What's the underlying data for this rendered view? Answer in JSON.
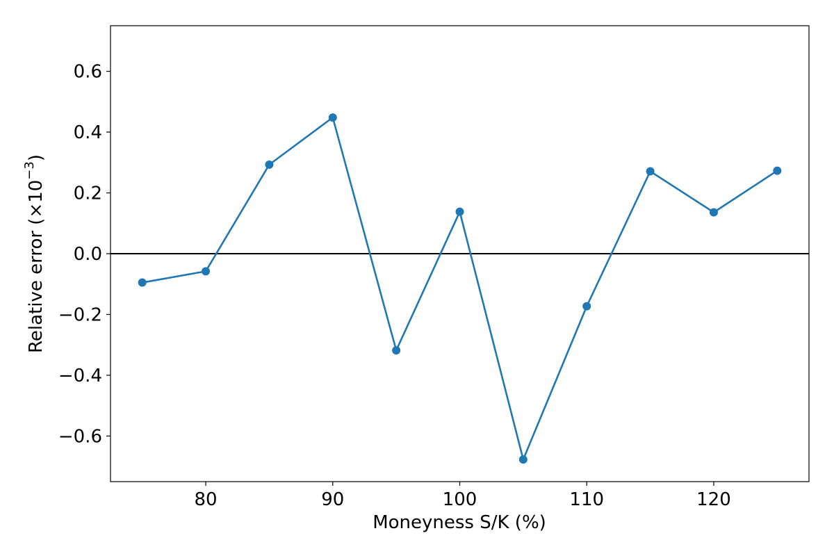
{
  "chart_data": {
    "type": "line",
    "xlabel": "Moneyness S/K (%)",
    "ylabel": "Relative error (×10",
    "ylabel_exponent": "−3",
    "ylabel_close": ")",
    "xlim": [
      72.5,
      127.5
    ],
    "ylim": [
      -0.75,
      0.75
    ],
    "xticks": [
      80,
      90,
      100,
      110,
      120
    ],
    "xtick_labels": [
      "80",
      "90",
      "100",
      "110",
      "120"
    ],
    "yticks": [
      0.6,
      0.4,
      0.2,
      0.0,
      -0.2,
      -0.4,
      -0.6
    ],
    "ytick_labels": [
      "0.6",
      "0.4",
      "0.2",
      "0.0",
      "−0.2",
      "−0.4",
      "−0.6"
    ],
    "grid": false,
    "reference_line_y": 0.0,
    "series": [
      {
        "x": [
          75,
          80,
          85,
          90,
          95,
          100,
          105,
          110,
          115,
          120,
          125
        ],
        "y": [
          -0.095,
          -0.058,
          0.293,
          0.448,
          -0.318,
          0.138,
          -0.677,
          -0.173,
          0.271,
          0.136,
          0.273
        ],
        "color": "#1f77b4"
      }
    ]
  }
}
